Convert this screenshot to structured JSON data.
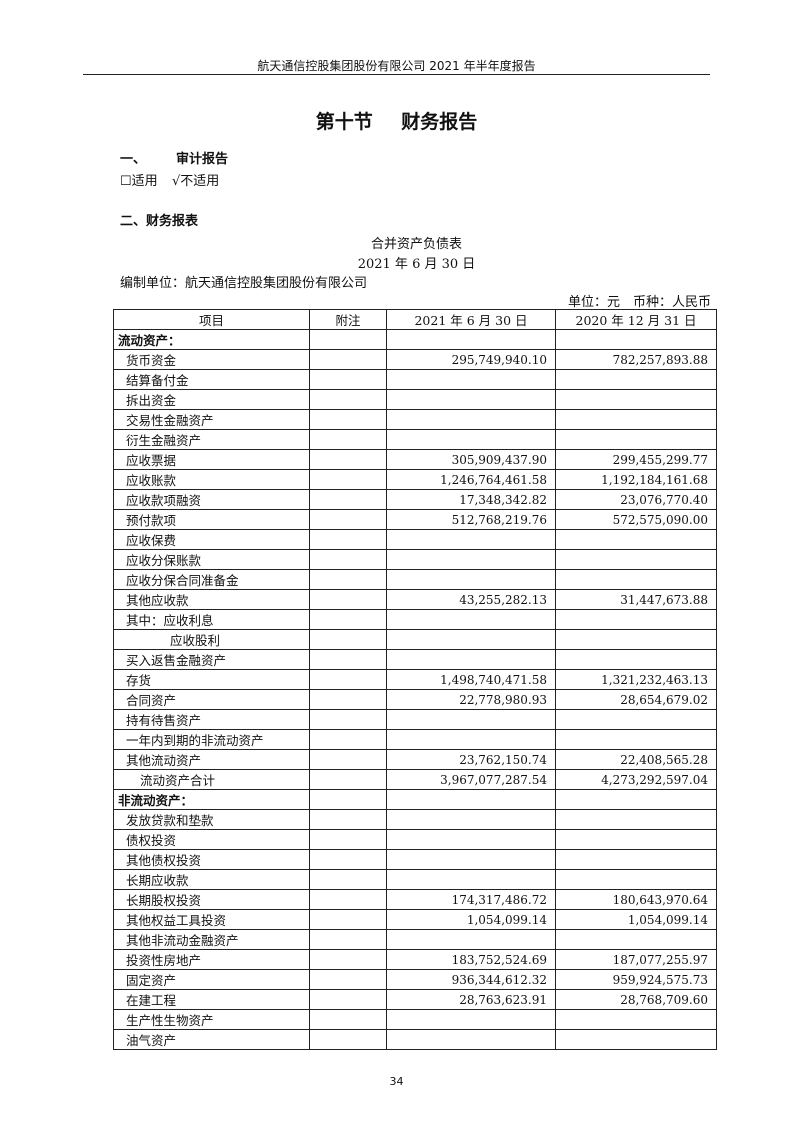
{
  "header": {
    "running_title": "航天通信控股集团股份有限公司 2021 年半年度报告"
  },
  "section_title": "第十节 财务报告",
  "audit": {
    "heading_num": "一、",
    "heading": "审计报告",
    "option_applicable": "☐适用",
    "option_not_applicable": "√不适用"
  },
  "statements": {
    "heading": "二、财务报表"
  },
  "sheet": {
    "title": "合并资产负债表",
    "date": "2021 年 6 月 30 日",
    "preparer": "编制单位：航天通信控股集团股份有限公司",
    "unit": "单位：元　币种：人民币",
    "columns": [
      "项目",
      "附注",
      "2021 年 6 月 30 日",
      "2020 年 12 月 31 日"
    ],
    "rows": [
      {
        "item": "流动资产：",
        "level": 0,
        "section": true,
        "note": "",
        "current": "",
        "prior": ""
      },
      {
        "item": "货币资金",
        "level": 1,
        "note": "",
        "current": "295,749,940.10",
        "prior": "782,257,893.88"
      },
      {
        "item": "结算备付金",
        "level": 1,
        "note": "",
        "current": "",
        "prior": ""
      },
      {
        "item": "拆出资金",
        "level": 1,
        "note": "",
        "current": "",
        "prior": ""
      },
      {
        "item": "交易性金融资产",
        "level": 1,
        "note": "",
        "current": "",
        "prior": ""
      },
      {
        "item": "衍生金融资产",
        "level": 1,
        "note": "",
        "current": "",
        "prior": ""
      },
      {
        "item": "应收票据",
        "level": 1,
        "note": "",
        "current": "305,909,437.90",
        "prior": "299,455,299.77"
      },
      {
        "item": "应收账款",
        "level": 1,
        "note": "",
        "current": "1,246,764,461.58",
        "prior": "1,192,184,161.68"
      },
      {
        "item": "应收款项融资",
        "level": 1,
        "note": "",
        "current": "17,348,342.82",
        "prior": "23,076,770.40"
      },
      {
        "item": "预付款项",
        "level": 1,
        "note": "",
        "current": "512,768,219.76",
        "prior": "572,575,090.00"
      },
      {
        "item": "应收保费",
        "level": 1,
        "note": "",
        "current": "",
        "prior": ""
      },
      {
        "item": "应收分保账款",
        "level": 1,
        "note": "",
        "current": "",
        "prior": ""
      },
      {
        "item": "应收分保合同准备金",
        "level": 1,
        "note": "",
        "current": "",
        "prior": ""
      },
      {
        "item": "其他应收款",
        "level": 1,
        "note": "",
        "current": "43,255,282.13",
        "prior": "31,447,673.88"
      },
      {
        "item": "其中：应收利息",
        "level": 1,
        "note": "",
        "current": "",
        "prior": ""
      },
      {
        "item": "应收股利",
        "level": 3,
        "note": "",
        "current": "",
        "prior": ""
      },
      {
        "item": "买入返售金融资产",
        "level": 1,
        "note": "",
        "current": "",
        "prior": ""
      },
      {
        "item": "存货",
        "level": 1,
        "note": "",
        "current": "1,498,740,471.58",
        "prior": "1,321,232,463.13"
      },
      {
        "item": "合同资产",
        "level": 1,
        "note": "",
        "current": "22,778,980.93",
        "prior": "28,654,679.02"
      },
      {
        "item": "持有待售资产",
        "level": 1,
        "note": "",
        "current": "",
        "prior": ""
      },
      {
        "item": "一年内到期的非流动资产",
        "level": 1,
        "note": "",
        "current": "",
        "prior": ""
      },
      {
        "item": "其他流动资产",
        "level": 1,
        "note": "",
        "current": "23,762,150.74",
        "prior": "22,408,565.28"
      },
      {
        "item": "流动资产合计",
        "level": 2,
        "note": "",
        "current": "3,967,077,287.54",
        "prior": "4,273,292,597.04"
      },
      {
        "item": "非流动资产：",
        "level": 0,
        "section": true,
        "note": "",
        "current": "",
        "prior": ""
      },
      {
        "item": "发放贷款和垫款",
        "level": 1,
        "note": "",
        "current": "",
        "prior": ""
      },
      {
        "item": "债权投资",
        "level": 1,
        "note": "",
        "current": "",
        "prior": ""
      },
      {
        "item": "其他债权投资",
        "level": 1,
        "note": "",
        "current": "",
        "prior": ""
      },
      {
        "item": "长期应收款",
        "level": 1,
        "note": "",
        "current": "",
        "prior": ""
      },
      {
        "item": "长期股权投资",
        "level": 1,
        "note": "",
        "current": "174,317,486.72",
        "prior": "180,643,970.64"
      },
      {
        "item": "其他权益工具投资",
        "level": 1,
        "note": "",
        "current": "1,054,099.14",
        "prior": "1,054,099.14"
      },
      {
        "item": "其他非流动金融资产",
        "level": 1,
        "note": "",
        "current": "",
        "prior": ""
      },
      {
        "item": "投资性房地产",
        "level": 1,
        "note": "",
        "current": "183,752,524.69",
        "prior": "187,077,255.97"
      },
      {
        "item": "固定资产",
        "level": 1,
        "note": "",
        "current": "936,344,612.32",
        "prior": "959,924,575.73"
      },
      {
        "item": "在建工程",
        "level": 1,
        "note": "",
        "current": "28,763,623.91",
        "prior": "28,768,709.60"
      },
      {
        "item": "生产性生物资产",
        "level": 1,
        "note": "",
        "current": "",
        "prior": ""
      },
      {
        "item": "油气资产",
        "level": 1,
        "note": "",
        "current": "",
        "prior": ""
      }
    ]
  },
  "page_number": "34"
}
